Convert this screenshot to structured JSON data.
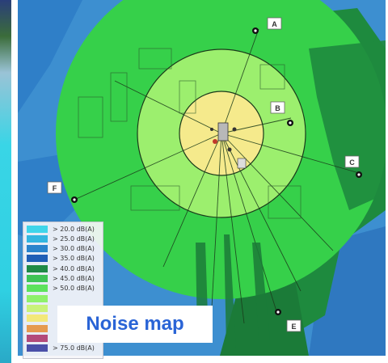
{
  "caption": "Noise map",
  "receivers": [
    {
      "id": "A",
      "label": "A"
    },
    {
      "id": "B",
      "label": "B"
    },
    {
      "id": "C",
      "label": "C"
    },
    {
      "id": "E",
      "label": "E"
    },
    {
      "id": "F",
      "label": "F"
    }
  ],
  "legend": {
    "items": [
      {
        "label": "> 20.0 dB(A)",
        "color": "#3fd5ea"
      },
      {
        "label": "> 25.0 dB(A)",
        "color": "#33b6e0"
      },
      {
        "label": "> 30.0 dB(A)",
        "color": "#2a84cc"
      },
      {
        "label": "> 35.0 dB(A)",
        "color": "#1f5eb6"
      },
      {
        "label": "> 40.0 dB(A)",
        "color": "#1f8a46"
      },
      {
        "label": "> 45.0 dB(A)",
        "color": "#3ec356"
      },
      {
        "label": "> 50.0 dB(A)",
        "color": "#5de25d"
      },
      {
        "label": "",
        "color": "#8ff06b"
      },
      {
        "label": "",
        "color": "#c9f27a"
      },
      {
        "label": "",
        "color": "#f3e87a"
      },
      {
        "label": "",
        "color": "#e59a4f"
      },
      {
        "label": "",
        "color": "#b34a7a"
      },
      {
        "label": "> 75.0 dB(A)",
        "color": "#4a4fa8"
      }
    ]
  },
  "colors": {
    "outer_blue": "#3d8fd0",
    "dark_green": "#1e8a3e",
    "ring_green": "#36d04a",
    "mid_green": "#7ce86a",
    "light_green": "#c8f2a2",
    "yellow": "#f5ea8c"
  }
}
